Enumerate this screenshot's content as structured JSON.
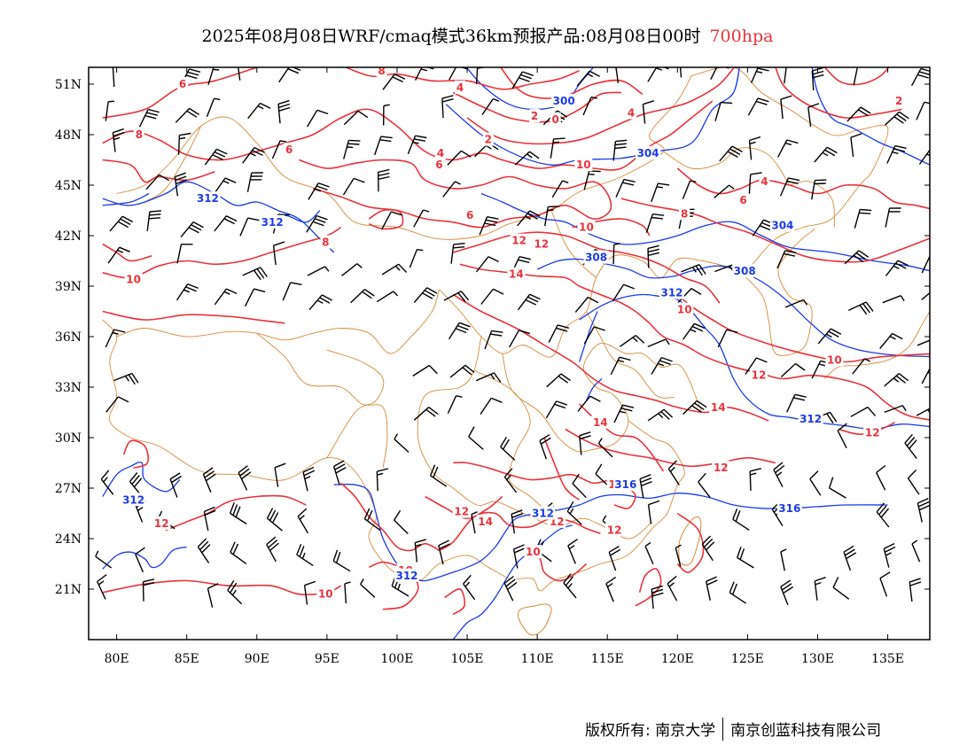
{
  "title": {
    "text": "2025年08月08日WRF/cmaq模式36km预报产品:08月08日00时",
    "level": "700hpa"
  },
  "axes": {
    "lat_labels": [
      "51N",
      "48N",
      "45N",
      "42N",
      "39N",
      "36N",
      "33N",
      "30N",
      "27N",
      "24N",
      "21N"
    ],
    "lat_values": [
      51,
      48,
      45,
      42,
      39,
      36,
      33,
      30,
      27,
      24,
      21
    ],
    "lon_labels": [
      "80E",
      "85E",
      "90E",
      "95E",
      "100E",
      "105E",
      "110E",
      "115E",
      "120E",
      "125E",
      "130E",
      "135E"
    ],
    "lon_values": [
      80,
      85,
      90,
      95,
      100,
      105,
      110,
      115,
      120,
      125,
      130,
      135
    ],
    "lon_range": [
      78,
      138
    ],
    "lat_range": [
      18,
      52
    ]
  },
  "contours": {
    "temperature_color": "#e8333a",
    "height_color": "#1a3be8",
    "border_color": "#d98a3a",
    "temperature_labels": [
      {
        "text": "6",
        "lon": 84.7,
        "lat": 51.0
      },
      {
        "text": "8",
        "lon": 98.9,
        "lat": 51.8
      },
      {
        "text": "4",
        "lon": 104.5,
        "lat": 50.8
      },
      {
        "text": "2",
        "lon": 109.8,
        "lat": 49.1
      },
      {
        "text": "0",
        "lon": 111.3,
        "lat": 48.9
      },
      {
        "text": "4",
        "lon": 116.7,
        "lat": 49.3
      },
      {
        "text": "2",
        "lon": 135.8,
        "lat": 50.0
      },
      {
        "text": "8",
        "lon": 81.6,
        "lat": 48.0
      },
      {
        "text": "6",
        "lon": 92.3,
        "lat": 47.1
      },
      {
        "text": "4",
        "lon": 103.1,
        "lat": 46.9
      },
      {
        "text": "2",
        "lon": 106.5,
        "lat": 47.7
      },
      {
        "text": "6",
        "lon": 103.0,
        "lat": 46.2
      },
      {
        "text": "10",
        "lon": 113.3,
        "lat": 46.2
      },
      {
        "text": "4",
        "lon": 126.2,
        "lat": 45.2
      },
      {
        "text": "6",
        "lon": 124.7,
        "lat": 44.1
      },
      {
        "text": "6",
        "lon": 105.2,
        "lat": 43.2
      },
      {
        "text": "8",
        "lon": 120.5,
        "lat": 43.3
      },
      {
        "text": "8",
        "lon": 94.9,
        "lat": 41.6
      },
      {
        "text": "12",
        "lon": 108.7,
        "lat": 41.7
      },
      {
        "text": "12",
        "lon": 110.3,
        "lat": 41.5
      },
      {
        "text": "10",
        "lon": 113.5,
        "lat": 42.5
      },
      {
        "text": "14",
        "lon": 108.5,
        "lat": 39.7
      },
      {
        "text": "10",
        "lon": 81.2,
        "lat": 39.4
      },
      {
        "text": "10",
        "lon": 120.5,
        "lat": 37.6
      },
      {
        "text": "10",
        "lon": 131.2,
        "lat": 34.6
      },
      {
        "text": "12",
        "lon": 125.8,
        "lat": 33.7
      },
      {
        "text": "14",
        "lon": 122.9,
        "lat": 31.8
      },
      {
        "text": "14",
        "lon": 114.5,
        "lat": 30.9
      },
      {
        "text": "12",
        "lon": 133.9,
        "lat": 30.3
      },
      {
        "text": "12",
        "lon": 123.1,
        "lat": 28.2
      },
      {
        "text": "12",
        "lon": 115.6,
        "lat": 27.2
      },
      {
        "text": "12",
        "lon": 104.6,
        "lat": 25.6
      },
      {
        "text": "14",
        "lon": 106.3,
        "lat": 25.0
      },
      {
        "text": "12",
        "lon": 111.4,
        "lat": 25.0
      },
      {
        "text": "12",
        "lon": 115.5,
        "lat": 24.5
      },
      {
        "text": "12",
        "lon": 83.2,
        "lat": 24.9
      },
      {
        "text": "10",
        "lon": 109.7,
        "lat": 23.2
      },
      {
        "text": "10",
        "lon": 100.6,
        "lat": 22.1
      },
      {
        "text": "10",
        "lon": 94.9,
        "lat": 20.7
      }
    ],
    "height_labels": [
      {
        "text": "300",
        "lon": 111.9,
        "lat": 50.0
      },
      {
        "text": "304",
        "lon": 117.9,
        "lat": 46.9
      },
      {
        "text": "312",
        "lon": 86.5,
        "lat": 44.2
      },
      {
        "text": "312",
        "lon": 91.1,
        "lat": 42.8
      },
      {
        "text": "304",
        "lon": 127.5,
        "lat": 42.6
      },
      {
        "text": "308",
        "lon": 114.2,
        "lat": 40.7
      },
      {
        "text": "308",
        "lon": 124.8,
        "lat": 39.9
      },
      {
        "text": "312",
        "lon": 119.6,
        "lat": 38.6
      },
      {
        "text": "312",
        "lon": 129.5,
        "lat": 31.1
      },
      {
        "text": "316",
        "lon": 116.3,
        "lat": 27.2
      },
      {
        "text": "316",
        "lon": 128.0,
        "lat": 25.8
      },
      {
        "text": "312",
        "lon": 81.2,
        "lat": 26.3
      },
      {
        "text": "312",
        "lon": 110.4,
        "lat": 25.5
      },
      {
        "text": "312",
        "lon": 100.7,
        "lat": 21.8
      }
    ]
  },
  "footer": {
    "left": "版权所有: 南京大学",
    "right": "南京创蓝科技有限公司"
  }
}
